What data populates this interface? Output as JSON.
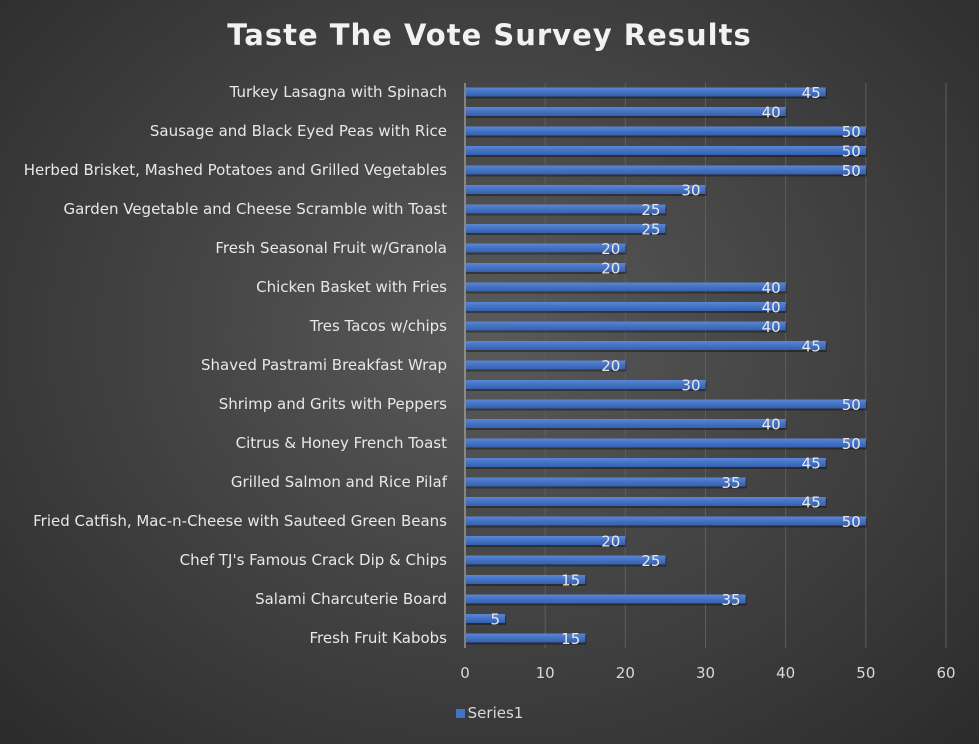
{
  "chart_data": {
    "type": "bar",
    "orientation": "horizontal",
    "title": "Taste The Vote Survey Results",
    "categories": [
      "Turkey Lasagna with Spinach",
      "",
      "Sausage and Black Eyed Peas with Rice",
      "",
      "Herbed Brisket, Mashed Potatoes and Grilled Vegetables",
      "",
      "Garden Vegetable and Cheese Scramble with Toast",
      "",
      "Fresh Seasonal Fruit w/Granola",
      "",
      "Chicken Basket with Fries",
      "",
      "Tres Tacos w/chips",
      "",
      "Shaved Pastrami Breakfast Wrap",
      "",
      "Shrimp and Grits with Peppers",
      "",
      "Citrus & Honey French Toast",
      "",
      "Grilled Salmon and Rice Pilaf",
      "",
      "Fried Catfish, Mac-n-Cheese with Sauteed Green Beans",
      "",
      "Chef TJ's Famous Crack Dip & Chips",
      "",
      "Salami Charcuterie Board",
      "",
      "Fresh Fruit Kabobs"
    ],
    "series": [
      {
        "name": "Series1",
        "color": "#4472c4",
        "values": [
          45,
          40,
          50,
          50,
          50,
          30,
          25,
          25,
          20,
          20,
          40,
          40,
          40,
          45,
          20,
          30,
          50,
          40,
          50,
          45,
          35,
          45,
          50,
          20,
          25,
          15,
          35,
          5,
          15
        ]
      }
    ],
    "xlim": [
      0,
      60
    ],
    "xticks": [
      "0",
      "10",
      "20",
      "30",
      "40",
      "50",
      "60"
    ],
    "grid": true,
    "data_labels": true,
    "legend": "bottom",
    "xlabel": "",
    "ylabel": ""
  }
}
